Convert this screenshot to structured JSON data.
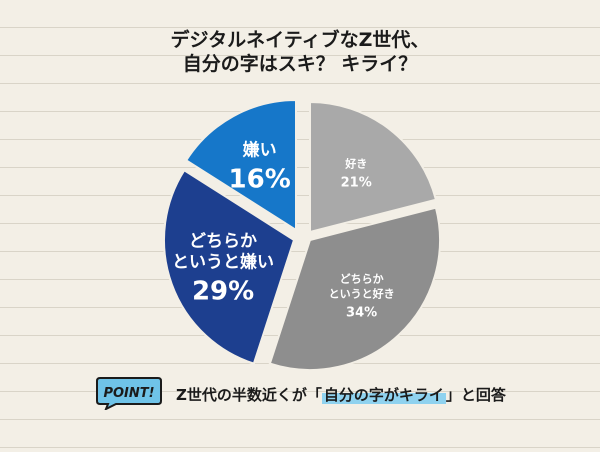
{
  "title": {
    "line1": "デジタルネイティブなZ世代、",
    "line2": "自分の字はスキ？ キライ？"
  },
  "chart_data": {
    "type": "pie",
    "title": "デジタルネイティブなZ世代、自分の字はスキ？ キライ？",
    "slices": [
      {
        "label": "好き",
        "value": 21,
        "pct_text": "21%",
        "color": "#a9a9a9"
      },
      {
        "label": "どちらか\nというと好き",
        "label_l1": "どちらか",
        "label_l2": "というと好き",
        "value": 34,
        "pct_text": "34%",
        "color": "#8e8e8e"
      },
      {
        "label": "どちらか\nというと嫌い",
        "label_l1": "どちらか",
        "label_l2": "というと嫌い",
        "value": 29,
        "pct_text": "29%",
        "color": "#1d3f8f"
      },
      {
        "label": "嫌い",
        "value": 16,
        "pct_text": "16%",
        "color": "#1677c9"
      }
    ]
  },
  "badge": {
    "text": "POINT!"
  },
  "footer": {
    "before": "Z世代の半数近くが「",
    "highlight": "自分の字がキライ",
    "after": "」と回答"
  }
}
